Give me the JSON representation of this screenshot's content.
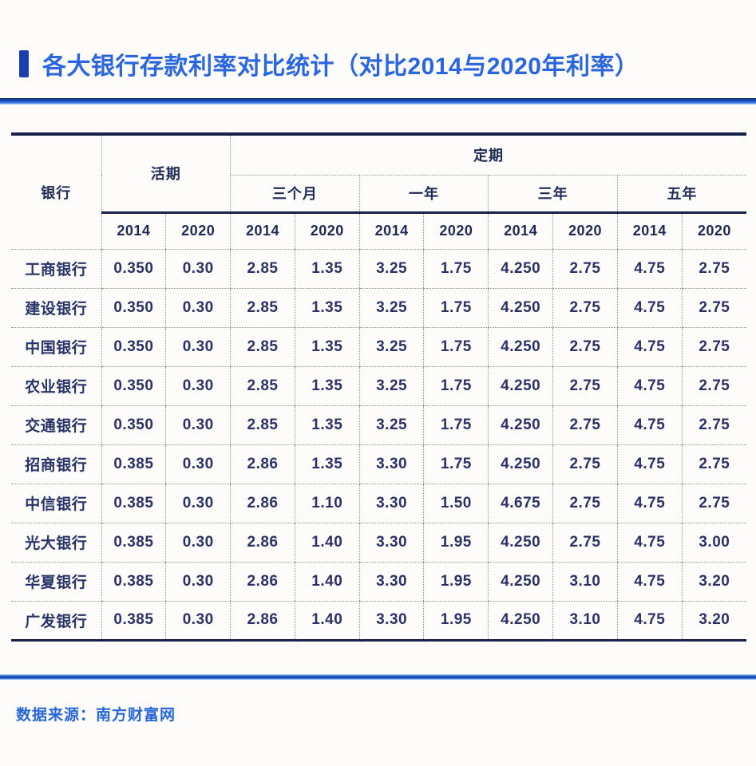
{
  "page": {
    "title": "各大银行存款利率对比统计（对比2014与2020年利率）",
    "source": "数据来源：南方财富网"
  },
  "colors": {
    "title_blue": "#2a66de",
    "title_accent_bar": "#1d3fae",
    "table_line_dark": "#16224a",
    "cell_text_navy": "#2b3166",
    "divider_blue": "#2166dc",
    "dotted_grid_grey": "#949494",
    "background": "#fdfcfa"
  },
  "chart_data": {
    "type": "table",
    "title": "各大银行存款利率对比统计（对比2014与2020年利率）",
    "source": "数据来源：南方财富网",
    "header": {
      "bank": "银行",
      "demand": "活期",
      "fixed": "定期",
      "terms": [
        "三个月",
        "一年",
        "三年",
        "五年"
      ],
      "years": [
        "2014",
        "2020"
      ]
    },
    "columns": [
      "银行",
      "活期 2014",
      "活期 2020",
      "三个月 2014",
      "三个月 2020",
      "一年 2014",
      "一年 2020",
      "三年 2014",
      "三年 2020",
      "五年 2014",
      "五年 2020"
    ],
    "rows": [
      {
        "bank": "工商银行",
        "values": [
          "0.350",
          "0.30",
          "2.85",
          "1.35",
          "3.25",
          "1.75",
          "4.250",
          "2.75",
          "4.75",
          "2.75"
        ]
      },
      {
        "bank": "建设银行",
        "values": [
          "0.350",
          "0.30",
          "2.85",
          "1.35",
          "3.25",
          "1.75",
          "4.250",
          "2.75",
          "4.75",
          "2.75"
        ]
      },
      {
        "bank": "中国银行",
        "values": [
          "0.350",
          "0.30",
          "2.85",
          "1.35",
          "3.25",
          "1.75",
          "4.250",
          "2.75",
          "4.75",
          "2.75"
        ]
      },
      {
        "bank": "农业银行",
        "values": [
          "0.350",
          "0.30",
          "2.85",
          "1.35",
          "3.25",
          "1.75",
          "4.250",
          "2.75",
          "4.75",
          "2.75"
        ]
      },
      {
        "bank": "交通银行",
        "values": [
          "0.350",
          "0.30",
          "2.85",
          "1.35",
          "3.25",
          "1.75",
          "4.250",
          "2.75",
          "4.75",
          "2.75"
        ]
      },
      {
        "bank": "招商银行",
        "values": [
          "0.385",
          "0.30",
          "2.86",
          "1.35",
          "3.30",
          "1.75",
          "4.250",
          "2.75",
          "4.75",
          "2.75"
        ]
      },
      {
        "bank": "中信银行",
        "values": [
          "0.385",
          "0.30",
          "2.86",
          "1.10",
          "3.30",
          "1.50",
          "4.675",
          "2.75",
          "4.75",
          "2.75"
        ]
      },
      {
        "bank": "光大银行",
        "values": [
          "0.385",
          "0.30",
          "2.86",
          "1.40",
          "3.30",
          "1.95",
          "4.250",
          "2.75",
          "4.75",
          "3.00"
        ]
      },
      {
        "bank": "华夏银行",
        "values": [
          "0.385",
          "0.30",
          "2.86",
          "1.40",
          "3.30",
          "1.95",
          "4.250",
          "3.10",
          "4.75",
          "3.20"
        ]
      },
      {
        "bank": "广发银行",
        "values": [
          "0.385",
          "0.30",
          "2.86",
          "1.40",
          "3.30",
          "1.95",
          "4.250",
          "3.10",
          "4.75",
          "3.20"
        ]
      }
    ]
  }
}
